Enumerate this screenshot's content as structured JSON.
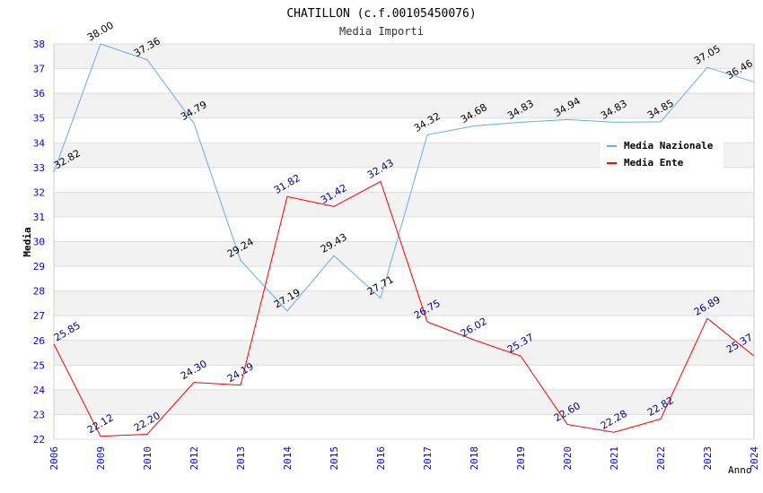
{
  "chart_data": {
    "type": "line",
    "title": "CHATILLON (c.f.00105450076)",
    "subtitle": "Media Importi",
    "xlabel": "Anno",
    "ylabel": "Media",
    "ylim": [
      22,
      38
    ],
    "yticks": [
      "22",
      "23",
      "24",
      "25",
      "26",
      "27",
      "28",
      "29",
      "30",
      "31",
      "32",
      "33",
      "34",
      "35",
      "36",
      "37",
      "38"
    ],
    "categories": [
      "2006",
      "2009",
      "2010",
      "2012",
      "2013",
      "2014",
      "2015",
      "2016",
      "2017",
      "2018",
      "2019",
      "2020",
      "2021",
      "2022",
      "2023",
      "2024"
    ],
    "legend_position": "top-right",
    "series": [
      {
        "name": "Media Nazionale",
        "color": "#6aaaee",
        "label_color": "#000000",
        "values": [
          32.82,
          38.0,
          37.36,
          34.79,
          29.24,
          27.19,
          29.43,
          27.71,
          34.32,
          34.68,
          34.83,
          34.94,
          34.83,
          34.85,
          37.05,
          36.46
        ],
        "labels": [
          "32.82",
          "38.00",
          "37.36",
          "34.79",
          "29.24",
          "27.19",
          "29.43",
          "27.71",
          "34.32",
          "34.68",
          "34.83",
          "34.94",
          "34.83",
          "34.85",
          "37.05",
          "36.46"
        ]
      },
      {
        "name": "Media Ente",
        "color": "#ff0000",
        "label_color": "#000080",
        "values": [
          25.85,
          22.12,
          22.2,
          24.3,
          24.19,
          31.82,
          31.42,
          32.43,
          26.75,
          26.02,
          25.37,
          22.6,
          22.28,
          22.82,
          26.89,
          25.37
        ],
        "labels": [
          "25.85",
          "22.12",
          "22.20",
          "24.30",
          "24.19",
          "31.82",
          "31.42",
          "32.43",
          "26.75",
          "26.02",
          "25.37",
          "22.60",
          "22.28",
          "22.82",
          "26.89",
          "25.37"
        ]
      }
    ]
  }
}
